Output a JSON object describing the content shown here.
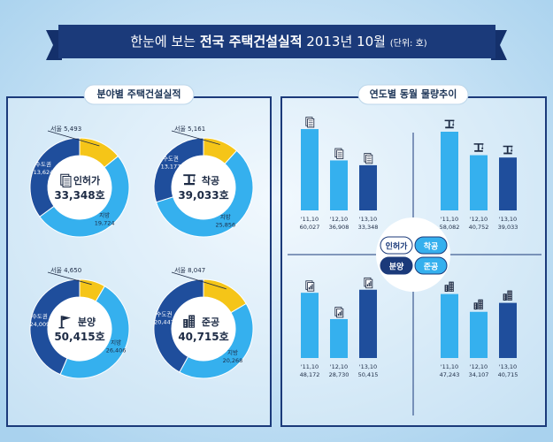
{
  "header": {
    "title_pre": "한눈에 보는",
    "title_bold": "전국 주택건설실적",
    "title_post": "2013년 10월",
    "unit": "(단위: 호)"
  },
  "left_section": {
    "title": "분야별 주택건설실적"
  },
  "right_section": {
    "title": "연도별 동월 물량추이"
  },
  "colors": {
    "seoul": "#f5c518",
    "metro": "#1f4e9c",
    "region": "#35b0ee",
    "bar_light": "#35b0ee",
    "bar_dark": "#1f4e9c",
    "navy": "#1b3a7a"
  },
  "chart_data": [
    {
      "type": "pie",
      "name": "인허가",
      "icon": "document-icon",
      "total_label": "33,348호",
      "slices": [
        {
          "label": "서울",
          "value": 5493,
          "value_label": "5,493"
        },
        {
          "label": "수도권",
          "value": 13624,
          "value_label": "13,624"
        },
        {
          "label": "지방",
          "value": 19724,
          "value_label": "19,724"
        }
      ]
    },
    {
      "type": "pie",
      "name": "착공",
      "icon": "crane-icon",
      "total_label": "39,033호",
      "slices": [
        {
          "label": "서울",
          "value": 5161,
          "value_label": "5,161"
        },
        {
          "label": "수도권",
          "value": 13177,
          "value_label": "13,177"
        },
        {
          "label": "지방",
          "value": 25856,
          "value_label": "25,856"
        }
      ]
    },
    {
      "type": "pie",
      "name": "분양",
      "icon": "flag-icon",
      "total_label": "50,415호",
      "slices": [
        {
          "label": "서울",
          "value": 4650,
          "value_label": "4,650"
        },
        {
          "label": "수도권",
          "value": 24009,
          "value_label": "24,009"
        },
        {
          "label": "지방",
          "value": 26406,
          "value_label": "26,406"
        }
      ]
    },
    {
      "type": "pie",
      "name": "준공",
      "icon": "building-icon",
      "total_label": "40,715호",
      "slices": [
        {
          "label": "서울",
          "value": 8047,
          "value_label": "8,047"
        },
        {
          "label": "수도권",
          "value": 20447,
          "value_label": "20,447"
        },
        {
          "label": "지방",
          "value": 20268,
          "value_label": "20,268"
        }
      ]
    },
    {
      "type": "bar",
      "name": "인허가",
      "icon": "document-icon",
      "categories": [
        "'11,10",
        "'12,10",
        "'13,10"
      ],
      "values": [
        60027,
        36908,
        33348
      ],
      "value_labels": [
        "60,027",
        "36,908",
        "33,348"
      ]
    },
    {
      "type": "bar",
      "name": "착공",
      "icon": "crane-icon",
      "categories": [
        "'11,10",
        "'12,10",
        "'13,10"
      ],
      "values": [
        58082,
        40752,
        39033
      ],
      "value_labels": [
        "58,082",
        "40,752",
        "39,033"
      ]
    },
    {
      "type": "bar",
      "name": "분양",
      "icon": "chart-doc-icon",
      "categories": [
        "'11,10",
        "'12,10",
        "'13,10"
      ],
      "values": [
        48172,
        28730,
        50415
      ],
      "value_labels": [
        "48,172",
        "28,730",
        "50,415"
      ]
    },
    {
      "type": "bar",
      "name": "준공",
      "icon": "building-icon",
      "categories": [
        "'11,10",
        "'12,10",
        "'13,10"
      ],
      "values": [
        47243,
        34107,
        40715
      ],
      "value_labels": [
        "47,243",
        "34,107",
        "40,715"
      ]
    }
  ]
}
